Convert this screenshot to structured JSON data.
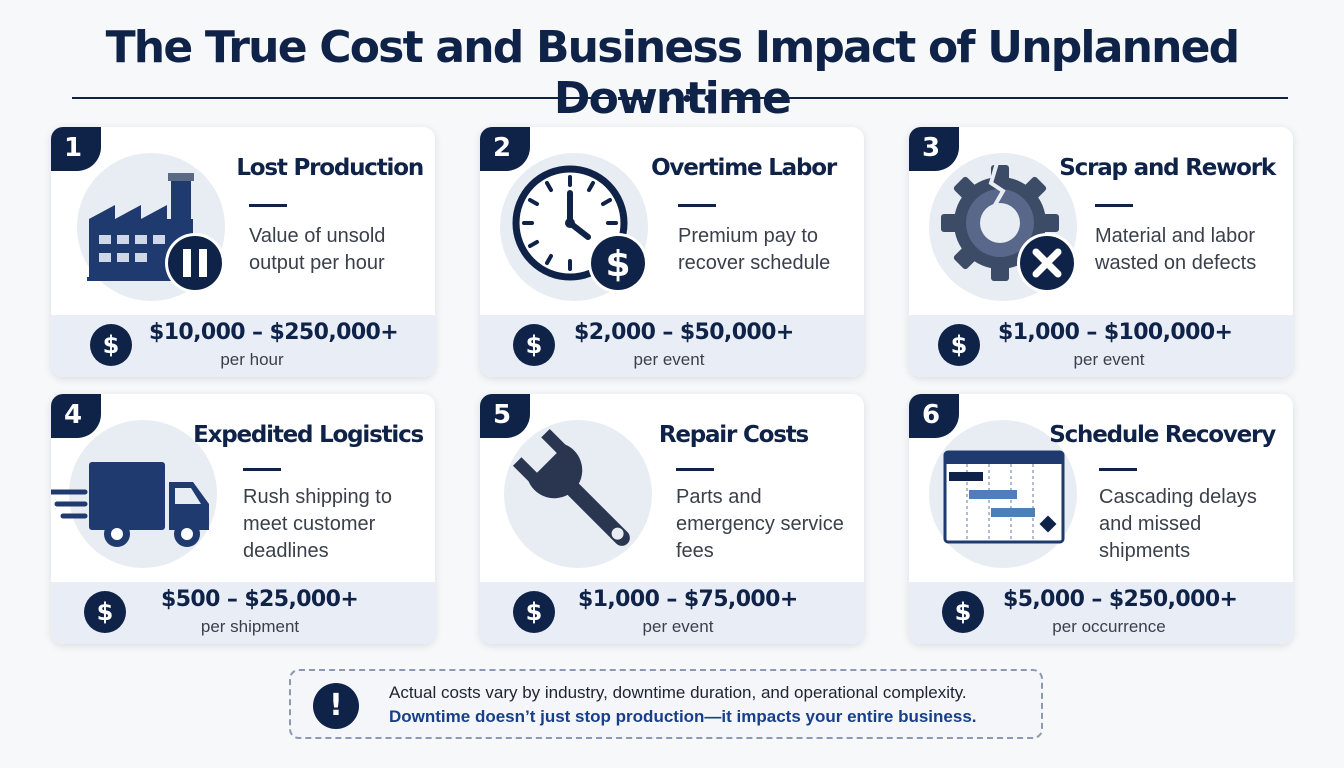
{
  "header": {
    "title": "The True Cost and Business Impact of Unplanned Downtime"
  },
  "colors": {
    "navy": "#0f2248",
    "band": "#e9eef6",
    "icon_bg": "#e8ecf3",
    "accent_blue": "#4f7fb8"
  },
  "cards": [
    {
      "number": "1",
      "title": "Lost Production",
      "icon": "factory-paused-icon",
      "description": [
        "Value of unsold",
        "output per hour"
      ],
      "cost": "$10,000 – $250,000+",
      "unit": "per hour"
    },
    {
      "number": "2",
      "title": "Overtime Labor",
      "icon": "clock-dollar-icon",
      "description": [
        "Premium pay to",
        "recover schedule"
      ],
      "cost": "$2,000 – $50,000+",
      "unit": "per event"
    },
    {
      "number": "3",
      "title": "Scrap and Rework",
      "icon": "broken-gear-icon",
      "description": [
        "Material and labor",
        "wasted on defects"
      ],
      "cost": "$1,000 – $100,000+",
      "unit": "per event"
    },
    {
      "number": "4",
      "title": "Expedited Logistics",
      "icon": "speeding-truck-icon",
      "description": [
        "Rush shipping to",
        "meet customer",
        "deadlines"
      ],
      "cost": "$500 – $25,000+",
      "unit": "per shipment"
    },
    {
      "number": "5",
      "title": "Repair Costs",
      "icon": "wrench-icon",
      "description": [
        "Parts and",
        "emergency service",
        "fees"
      ],
      "cost": "$1,000 – $75,000+",
      "unit": "per event"
    },
    {
      "number": "6",
      "title": "Schedule Recovery",
      "icon": "gantt-chart-icon",
      "description": [
        "Cascading delays",
        "and missed",
        "shipments"
      ],
      "cost": "$5,000 – $250,000+",
      "unit": "per occurrence"
    }
  ],
  "dollar_symbol": "$",
  "note": {
    "icon_symbol": "!",
    "line1": "Actual costs vary by industry, downtime duration, and operational complexity.",
    "line2": "Downtime doesn’t just stop production—it impacts your entire business."
  }
}
